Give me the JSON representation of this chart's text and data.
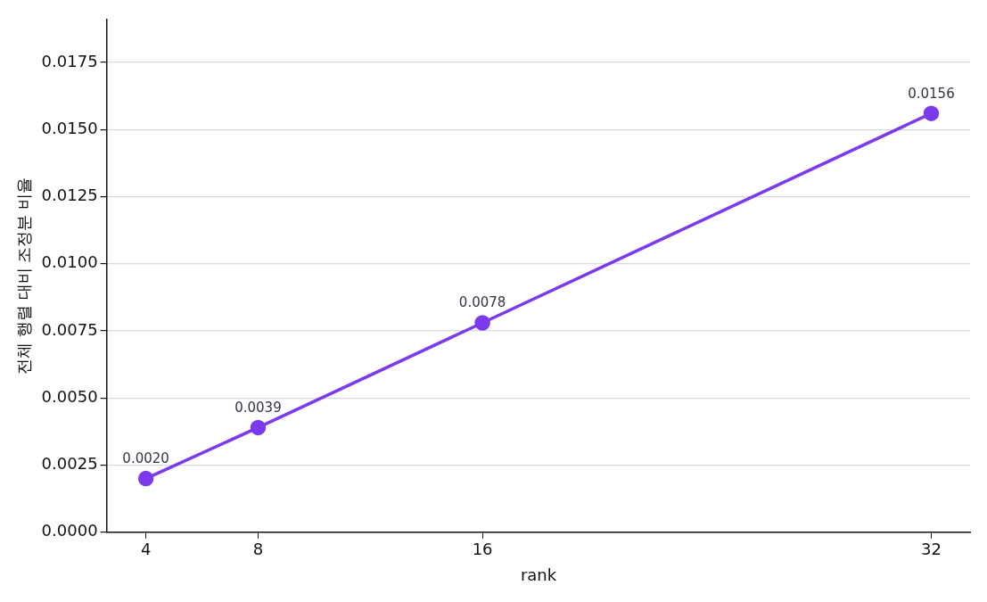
{
  "chart_data": {
    "type": "line",
    "xlabel": "rank",
    "ylabel": "전체 행렬 대비 조정분 비율",
    "x": [
      4,
      8,
      16,
      32
    ],
    "series": [
      {
        "color": "#7c3aed",
        "values": [
          0.002,
          0.0039,
          0.0078,
          0.0156
        ],
        "value_labels": [
          "0.0020",
          "0.0039",
          "0.0078",
          "0.0156"
        ]
      }
    ],
    "xlim": [
      2.6,
      33.4
    ],
    "xticks": [
      4,
      8,
      16,
      32
    ],
    "ylim": [
      0,
      0.0191
    ],
    "yticks": [
      {
        "value": 0,
        "label": "0.0000"
      },
      {
        "value": 0.0025,
        "label": "0.0025"
      },
      {
        "value": 0.005,
        "label": "0.0050"
      },
      {
        "value": 0.0075,
        "label": "0.0075"
      },
      {
        "value": 0.01,
        "label": "0.0100"
      },
      {
        "value": 0.0125,
        "label": "0.0125"
      },
      {
        "value": 0.015,
        "label": "0.0150"
      },
      {
        "value": 0.0175,
        "label": "0.0175"
      }
    ],
    "grid": "y",
    "marker": "circle",
    "line_style": "solid",
    "legend": false
  }
}
